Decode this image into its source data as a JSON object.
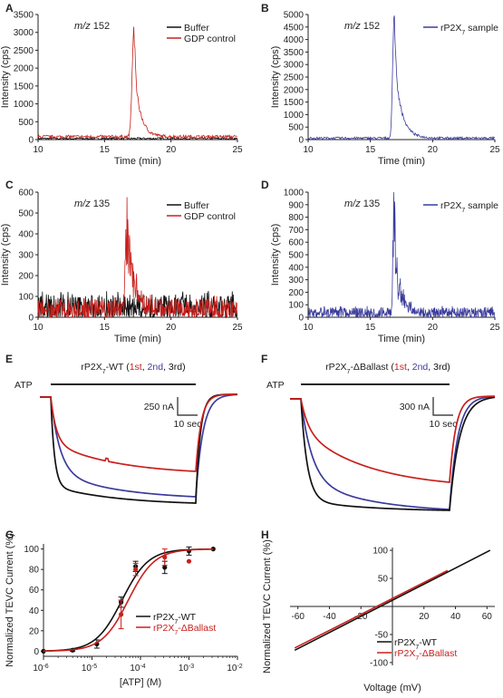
{
  "colors": {
    "black": "#111111",
    "red": "#c8201c",
    "blue": "#3b3c9c",
    "axis": "#222222"
  },
  "panels": [
    {
      "id": "A",
      "letter": "A",
      "type": "line",
      "annotation": "m/z 152",
      "annotation_italic": "m/z",
      "annotation_rest": " 152",
      "xlabel": "Time (min)",
      "ylabel": "Intensity (cps)",
      "xlim": [
        10,
        25
      ],
      "ylim": [
        0,
        3500
      ],
      "xticks": [
        10,
        15,
        20,
        25
      ],
      "yticks": [
        0,
        500,
        1000,
        1500,
        2000,
        2500,
        3000,
        3500
      ],
      "legend": [
        {
          "name": "Buffer",
          "color": "#111111"
        },
        {
          "name": "GDP control",
          "color": "#c8201c"
        }
      ],
      "series": [
        {
          "name": "Buffer",
          "color": "#111111",
          "shape": "noise",
          "baseline": 30,
          "noise": 60,
          "peak": null
        },
        {
          "name": "GDP control",
          "color": "#c8201c",
          "shape": "noise",
          "baseline": 80,
          "noise": 90,
          "peak": {
            "x": 17.2,
            "height": 3050,
            "rise": 0.18,
            "decay": 0.45
          }
        }
      ]
    },
    {
      "id": "B",
      "letter": "B",
      "type": "line",
      "annotation": "m/z 152",
      "annotation_italic": "m/z",
      "annotation_rest": " 152",
      "xlabel": "Time (min)",
      "ylabel": "Intensity (cps)",
      "xlim": [
        10,
        25
      ],
      "ylim": [
        0,
        5000
      ],
      "xticks": [
        10,
        15,
        20,
        25
      ],
      "yticks": [
        0,
        500,
        1000,
        1500,
        2000,
        2500,
        3000,
        3500,
        4000,
        4500,
        5000
      ],
      "legend": [
        {
          "name": "rP2X7 sample",
          "base": "rP2X",
          "sub": "7",
          "rest": " sample",
          "color": "#3b3c9c"
        }
      ],
      "series": [
        {
          "name": "rP2X7 sample",
          "color": "#3b3c9c",
          "shape": "noise",
          "baseline": 60,
          "noise": 90,
          "peak": {
            "x": 16.9,
            "height": 4850,
            "rise": 0.16,
            "decay": 0.55
          }
        }
      ]
    },
    {
      "id": "C",
      "letter": "C",
      "type": "line",
      "annotation": "m/z 135",
      "annotation_italic": "m/z",
      "annotation_rest": " 135",
      "xlabel": "Time (min)",
      "ylabel": "Intensity (cps)",
      "xlim": [
        10,
        25
      ],
      "ylim": [
        0,
        600
      ],
      "xticks": [
        10,
        15,
        20,
        25
      ],
      "yticks": [
        0,
        100,
        200,
        300,
        400,
        500,
        600
      ],
      "legend": [
        {
          "name": "Buffer",
          "color": "#111111"
        },
        {
          "name": "GDP control",
          "color": "#c8201c"
        }
      ],
      "series": [
        {
          "name": "Buffer",
          "color": "#111111",
          "shape": "spiky",
          "baseline": 0,
          "noise": 100,
          "peak": null
        },
        {
          "name": "GDP control",
          "color": "#c8201c",
          "shape": "spiky",
          "baseline": 0,
          "noise": 80,
          "peak": {
            "x": 16.7,
            "height": 540,
            "rise": 0.15,
            "decay": 0.6
          }
        }
      ]
    },
    {
      "id": "D",
      "letter": "D",
      "type": "line",
      "annotation": "m/z 135",
      "annotation_italic": "m/z",
      "annotation_rest": " 135",
      "xlabel": "Time (min)",
      "ylabel": "Intensity (cps)",
      "xlim": [
        10,
        25
      ],
      "ylim": [
        0,
        1000
      ],
      "xticks": [
        10,
        15,
        20,
        25
      ],
      "yticks": [
        0,
        100,
        200,
        300,
        400,
        500,
        600,
        700,
        800,
        900,
        1000
      ],
      "legend": [
        {
          "name": "rP2X7 sample",
          "base": "rP2X",
          "sub": "7",
          "rest": " sample",
          "color": "#3b3c9c"
        }
      ],
      "series": [
        {
          "name": "rP2X7 sample",
          "color": "#3b3c9c",
          "shape": "spiky",
          "baseline": 0,
          "noise": 70,
          "peak": {
            "x": 16.9,
            "height": 960,
            "rise": 0.12,
            "decay": 0.5
          }
        }
      ]
    }
  ],
  "traces": [
    {
      "id": "E",
      "letter": "E",
      "title_base": "rP2X",
      "title_sub": "7",
      "title_rest": "-WT (",
      "order": [
        {
          "text": "1st",
          "color": "#c8201c"
        },
        {
          "text": ", ",
          "color": "#111111"
        },
        {
          "text": "2nd",
          "color": "#3b3c9c"
        },
        {
          "text": ", 3rd)",
          "color": "#111111"
        }
      ],
      "atp_label": "ATP",
      "scale_current": "250 nA",
      "scale_time": "10 sec"
    },
    {
      "id": "F",
      "letter": "F",
      "title_base": "rP2X",
      "title_sub": "7",
      "title_rest": "-ΔBallast (",
      "order": [
        {
          "text": "1st",
          "color": "#c8201c"
        },
        {
          "text": ", ",
          "color": "#111111"
        },
        {
          "text": "2nd",
          "color": "#3b3c9c"
        },
        {
          "text": ", 3rd)",
          "color": "#111111"
        }
      ],
      "atp_label": "ATP",
      "scale_current": "300 nA",
      "scale_time": "10 sec"
    }
  ],
  "dose": {
    "id": "G",
    "letter": "G",
    "xlabel": "[ATP] (M)",
    "ylabel": "Normalized TEVC Current (%)",
    "ylim": [
      -5,
      105
    ],
    "yticks": [
      0,
      20,
      40,
      60,
      80,
      100
    ],
    "xlog": [
      -6,
      -2
    ],
    "xtick_exps": [
      -6,
      -5,
      -4,
      -3,
      -2
    ],
    "legend": [
      {
        "base": "rP2X",
        "sub": "7",
        "rest": "-WT",
        "color": "#111111"
      },
      {
        "base": "rP2X",
        "sub": "7",
        "rest": "-ΔBallast",
        "color": "#c8201c"
      }
    ],
    "series": [
      {
        "name": "WT",
        "color": "#111111",
        "ec50_log": -4.38,
        "hill": 1.6,
        "points": [
          [
            -6,
            0,
            0
          ],
          [
            -5.4,
            1,
            1
          ],
          [
            -4.9,
            7,
            4
          ],
          [
            -4.4,
            48,
            5
          ],
          [
            -4.1,
            83,
            5
          ],
          [
            -3.5,
            82,
            6
          ],
          [
            -3,
            98,
            4
          ],
          [
            -2.5,
            100,
            0
          ]
        ]
      },
      {
        "name": "ΔBallast",
        "color": "#c8201c",
        "ec50_log": -4.25,
        "hill": 1.6,
        "points": [
          [
            -4.4,
            36,
            14
          ],
          [
            -4.1,
            80,
            6
          ],
          [
            -3.5,
            92,
            8
          ],
          [
            -3,
            88,
            0
          ]
        ]
      }
    ]
  },
  "iv": {
    "id": "H",
    "letter": "H",
    "xlabel": "Voltage (mV)",
    "ylabel": "Normalized TEVC Current (%)",
    "xlim": [
      -65,
      65
    ],
    "ylim": [
      -105,
      105
    ],
    "xticks": [
      -60,
      -40,
      -20,
      20,
      40,
      60
    ],
    "yticks": [
      -100,
      -50,
      50,
      100
    ],
    "legend": [
      {
        "base": "rP2X",
        "sub": "7",
        "rest": "-WT",
        "color": "#111111"
      },
      {
        "base": "rP2X",
        "sub": "7",
        "rest": "-ΔBallast",
        "color": "#c8201c"
      }
    ],
    "series": [
      {
        "name": "WT",
        "color": "#111111",
        "x": [
          -62,
          62
        ],
        "y": [
          -78,
          100
        ]
      },
      {
        "name": "ΔBallast",
        "color": "#c8201c",
        "x": [
          -62,
          35
        ],
        "y": [
          -74,
          64
        ]
      }
    ]
  }
}
